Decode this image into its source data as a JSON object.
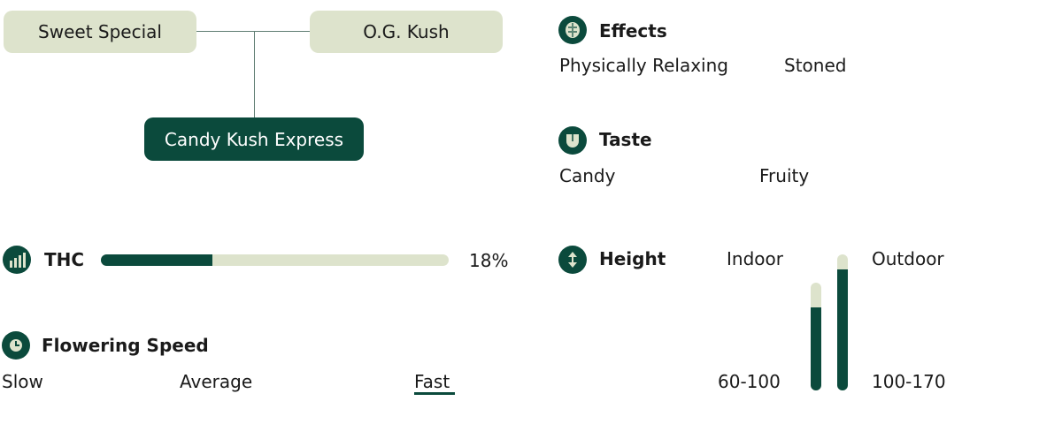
{
  "lineage": {
    "parent1": "Sweet Special",
    "parent2": "O.G. Kush",
    "child": "Candy Kush Express"
  },
  "thc": {
    "label": "THC",
    "value": "18%",
    "fill_fraction": 0.32
  },
  "flowering": {
    "label": "Flowering Speed",
    "options": [
      "Slow",
      "Average",
      "Fast"
    ],
    "selected": "Fast"
  },
  "effects": {
    "label": "Effects",
    "items": [
      "Physically Relaxing",
      "Stoned"
    ]
  },
  "taste": {
    "label": "Taste",
    "items": [
      "Candy",
      "Fruity"
    ]
  },
  "height": {
    "label": "Height",
    "indoor": {
      "label": "Indoor",
      "range": "60-100",
      "fill_fraction": 0.77
    },
    "outdoor": {
      "label": "Outdoor",
      "range": "100-170",
      "fill_fraction": 0.89
    }
  },
  "colors": {
    "dark": "#0b4a3c",
    "light": "#dde3cc"
  }
}
